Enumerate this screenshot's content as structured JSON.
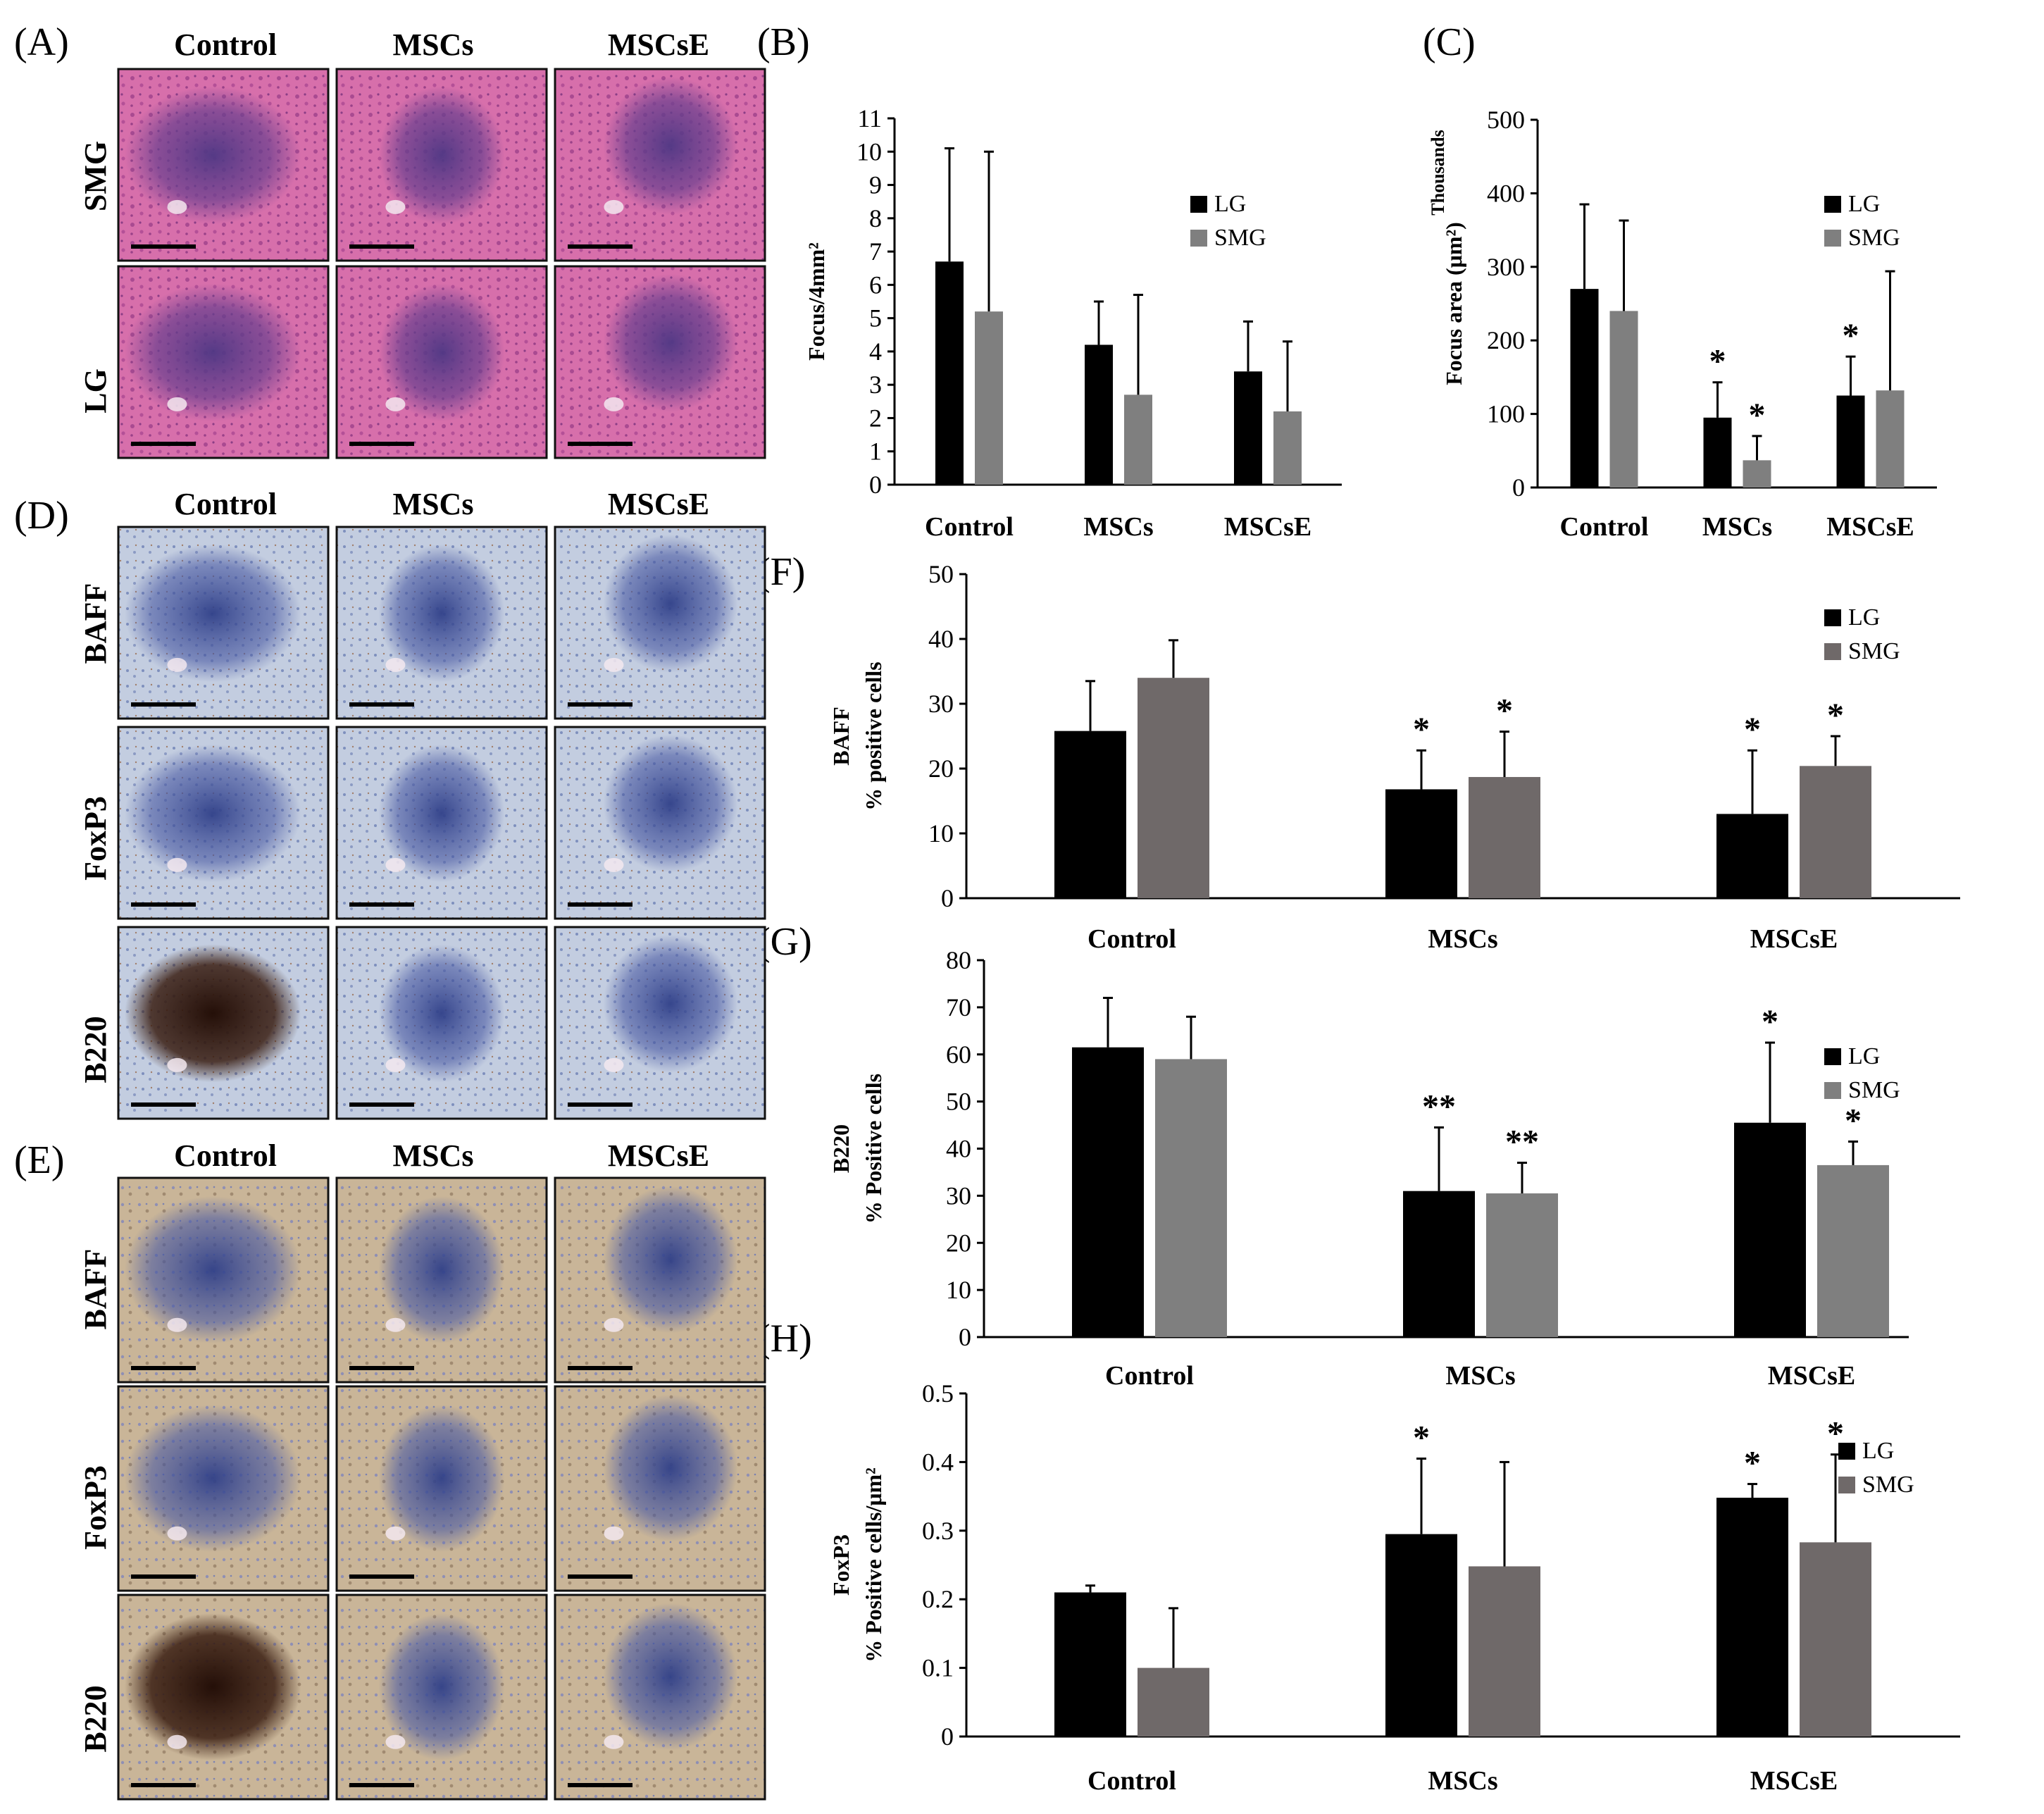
{
  "figure": {
    "panel_labels": {
      "A": "(A)",
      "B": "(B)",
      "C": "(C)",
      "D": "(D)",
      "E": "(E)",
      "F": "(F)",
      "G": "(G)",
      "H": "(H)"
    },
    "column_headers": [
      "Control",
      "MSCs",
      "MSCsE"
    ],
    "panelA_rows": [
      "SMG",
      "LG"
    ],
    "panelD_rows": [
      "BAFF",
      "FoxP3",
      "B220"
    ],
    "panelE_rows": [
      "BAFF",
      "FoxP3",
      "B220"
    ]
  },
  "colors": {
    "LG": "#000000",
    "SMG": "#7f7f7f",
    "SMG_dark": "#6f6969",
    "he_bg": "#c8569a",
    "he_dark": "#5b3a86",
    "ihc_d_bg": "#b9c6dc",
    "ihc_e_bg": "#b8a58f",
    "ihc_blue": "#3e4f96",
    "ihc_brown": "#3a1e12"
  },
  "chart_data": [
    {
      "id": "B",
      "type": "bar",
      "categories": [
        "Control",
        "MSCs",
        "MSCsE"
      ],
      "ylabel": "Focus/4mm²",
      "ylim": [
        0,
        11
      ],
      "yticks": [
        0,
        1,
        2,
        3,
        4,
        5,
        6,
        7,
        8,
        9,
        10,
        11
      ],
      "legend": "right",
      "series": [
        {
          "name": "LG",
          "values": [
            6.7,
            4.2,
            3.4
          ],
          "errors": [
            3.4,
            1.3,
            1.5
          ]
        },
        {
          "name": "SMG",
          "values": [
            5.2,
            2.7,
            2.2
          ],
          "errors": [
            4.8,
            3.0,
            2.1
          ]
        }
      ],
      "annotations": [
        [],
        [],
        []
      ]
    },
    {
      "id": "C",
      "type": "bar",
      "categories": [
        "Control",
        "MSCs",
        "MSCsE"
      ],
      "ylabel": "Focus area (μm²)",
      "yunit": "Thousands",
      "ylim": [
        0,
        500
      ],
      "yticks": [
        0,
        100,
        200,
        300,
        400,
        500
      ],
      "legend": "right",
      "series": [
        {
          "name": "LG",
          "values": [
            270,
            95,
            125
          ],
          "errors": [
            115,
            48,
            53
          ],
          "marks": [
            "",
            "*",
            "*"
          ]
        },
        {
          "name": "SMG",
          "values": [
            240,
            37,
            132
          ],
          "errors": [
            123,
            33,
            162
          ],
          "marks": [
            "",
            "*",
            ""
          ]
        }
      ]
    },
    {
      "id": "F",
      "type": "bar",
      "categories": [
        "Control",
        "MSCs",
        "MSCsE"
      ],
      "ylabel": "BAFF\n% positive cells",
      "ylim": [
        0,
        50
      ],
      "yticks": [
        0,
        10,
        20,
        30,
        40,
        50
      ],
      "legend": "right",
      "series": [
        {
          "name": "LG",
          "values": [
            25.8,
            16.8,
            13.0
          ],
          "errors": [
            7.7,
            6.0,
            9.8
          ],
          "marks": [
            "",
            "*",
            "*"
          ]
        },
        {
          "name": "SMG",
          "values": [
            34.0,
            18.7,
            20.4
          ],
          "errors": [
            5.8,
            7.0,
            4.6
          ],
          "marks": [
            "",
            "*",
            "*"
          ]
        }
      ]
    },
    {
      "id": "G",
      "type": "bar",
      "categories": [
        "Control",
        "MSCs",
        "MSCsE"
      ],
      "ylabel": "B220\n% Positive cells",
      "ylim": [
        0,
        80
      ],
      "yticks": [
        0,
        10,
        20,
        30,
        40,
        50,
        60,
        70,
        80
      ],
      "legend": "right",
      "series": [
        {
          "name": "LG",
          "values": [
            61.5,
            31.0,
            45.5
          ],
          "errors": [
            10.5,
            13.5,
            17.0
          ],
          "marks": [
            "",
            "**",
            "*"
          ]
        },
        {
          "name": "SMG",
          "values": [
            59.0,
            30.5,
            36.5
          ],
          "errors": [
            9.0,
            6.5,
            5.0
          ],
          "marks": [
            "",
            "**",
            "*"
          ]
        }
      ]
    },
    {
      "id": "H",
      "type": "bar",
      "categories": [
        "Control",
        "MSCs",
        "MSCsE"
      ],
      "ylabel": "FoxP3\n% Positive cells/μm²",
      "ylim": [
        0,
        0.5
      ],
      "yticks": [
        0,
        0.1,
        0.2,
        0.3,
        0.4,
        0.5
      ],
      "legend": "right",
      "series": [
        {
          "name": "LG",
          "values": [
            0.21,
            0.295,
            0.348
          ],
          "errors": [
            0.01,
            0.11,
            0.02
          ],
          "marks": [
            "",
            "*",
            "*"
          ]
        },
        {
          "name": "SMG",
          "values": [
            0.1,
            0.248,
            0.283
          ],
          "errors": [
            0.087,
            0.152,
            0.128
          ],
          "marks": [
            "",
            "",
            "*"
          ]
        }
      ]
    }
  ]
}
